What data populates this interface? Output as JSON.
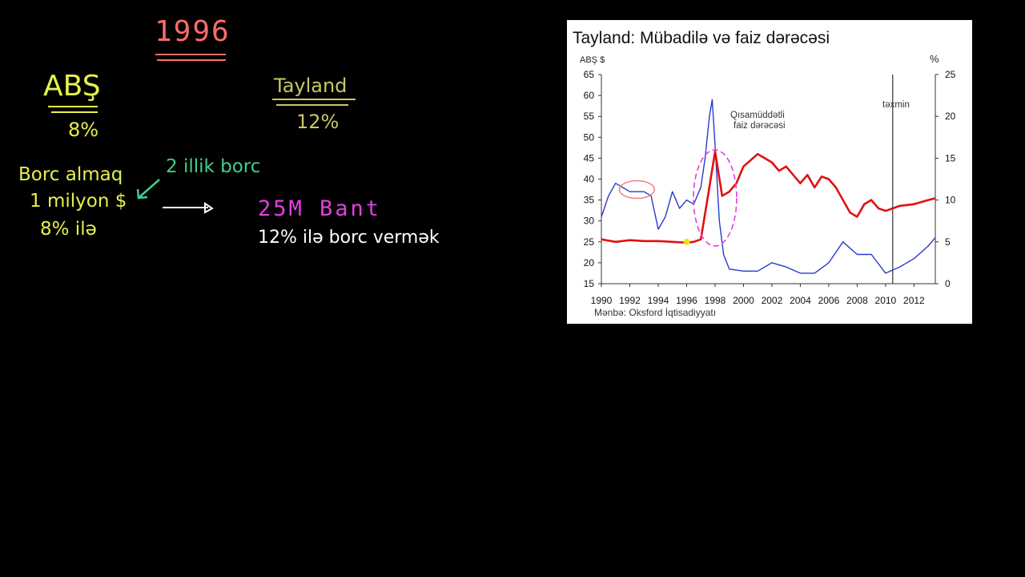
{
  "board": {
    "year": "1996",
    "usa_label": "ABŞ",
    "usa_rate": "8%",
    "thailand_label": "Tayland",
    "thailand_rate": "12%",
    "borrow_line1": "Borc almaq",
    "borrow_line2": "1 milyon $",
    "borrow_line3": "8% ilə",
    "loan_term": "2 illik borc",
    "baht_amount": "25M Bant",
    "lend_text": "12% ilə borc vermək",
    "colors": {
      "year": "#ff6b6b",
      "usa": "#e6f04a",
      "thailand": "#c8c864",
      "green": "#3fcf8e",
      "magenta": "#e040e0",
      "white": "#ffffff"
    }
  },
  "chart_data": {
    "type": "line",
    "title": "Tayland: Mübadilə və faiz dərəcəsi",
    "ylabel_left": "ABŞ $",
    "ylabel_right": "%",
    "ylim_left": [
      15,
      65
    ],
    "yticks_left": [
      15,
      20,
      25,
      30,
      35,
      40,
      45,
      50,
      55,
      60,
      65
    ],
    "ylim_right": [
      0,
      25
    ],
    "yticks_right": [
      0,
      5,
      10,
      15,
      20,
      25
    ],
    "xlim": [
      1990,
      2013.5
    ],
    "xticks": [
      1990,
      1992,
      1994,
      1996,
      1998,
      2000,
      2002,
      2004,
      2006,
      2008,
      2010,
      2012
    ],
    "grid": false,
    "annotations": {
      "short_rate": [
        "Qısamüddətli",
        "faiz dərəcəsi"
      ],
      "forecast": "təxmin",
      "forecast_x": 2010.5
    },
    "source": "Mənbə: Oksford İqtisadiyyatı",
    "series": [
      {
        "axis": "left",
        "color": "#2a3bcc",
        "x": [
          1990,
          1990.5,
          1991,
          1991.5,
          1992,
          1992.5,
          1993,
          1993.5,
          1994,
          1994.5,
          1995,
          1995.5,
          1996,
          1996.5,
          1997,
          1997.3,
          1997.6,
          1997.8,
          1998,
          1998.3,
          1998.6,
          1999,
          2000,
          2001,
          2002,
          2003,
          2004,
          2005,
          2006,
          2007,
          2008,
          2009,
          2010,
          2011,
          2012,
          2013,
          2013.5
        ],
        "y": [
          31,
          36,
          39,
          38,
          37,
          37,
          37,
          36,
          28,
          31,
          37,
          33,
          35,
          34,
          38,
          45,
          55,
          59,
          48,
          30,
          22,
          18.5,
          18,
          18,
          20,
          19,
          17.5,
          17.5,
          20,
          25,
          22,
          22,
          17.5,
          19,
          21,
          24,
          26
        ]
      },
      {
        "axis": "right",
        "color": "#e01010",
        "x": [
          1990,
          1991,
          1992,
          1993,
          1994,
          1995,
          1996,
          1996.5,
          1997,
          1997.5,
          1998,
          1998.5,
          1999,
          1999.5,
          2000,
          2001,
          2002,
          2002.5,
          2003,
          2003.5,
          2004,
          2004.5,
          2005,
          2005.5,
          2006,
          2006.5,
          2007,
          2007.5,
          2008,
          2008.5,
          2009,
          2009.5,
          2010,
          2010.5,
          2011,
          2012,
          2013,
          2013.5
        ],
        "y": [
          5.3,
          5,
          5.2,
          5.1,
          5.1,
          5,
          4.9,
          5,
          5.3,
          10.5,
          15.8,
          10.5,
          11,
          12,
          14,
          15.5,
          14.5,
          13.5,
          14,
          13,
          12,
          13,
          11.5,
          12.8,
          12.5,
          11.5,
          10,
          8.5,
          8,
          9.5,
          10,
          9,
          8.7,
          9,
          9.3,
          9.5,
          10,
          10.2
        ]
      }
    ]
  }
}
